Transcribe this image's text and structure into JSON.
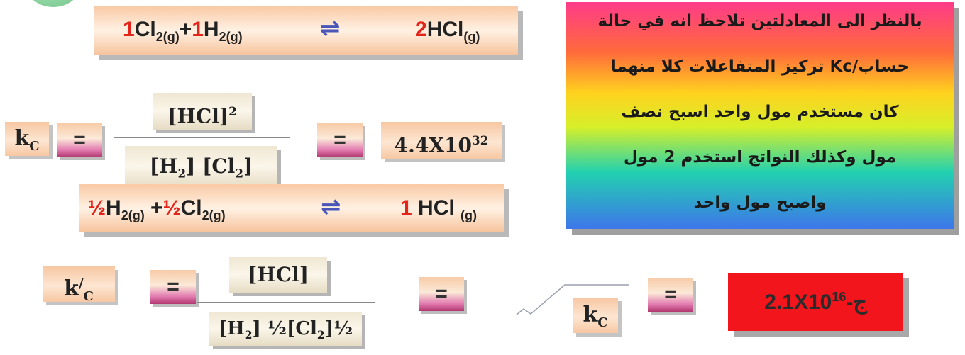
{
  "eq1": {
    "coef_cl": "1",
    "cl": "Cl",
    "cl_sub": "2(g)",
    "plus": "+",
    "coef_h": "1",
    "h": "H",
    "h_sub": "2(g)",
    "arrow": "⇌",
    "prod_coef": "2",
    "prod": "HCl",
    "prod_sub": "(g)"
  },
  "kc_row": {
    "kc_label": "k",
    "kc_sub": "C",
    "equals": "=",
    "numerator": "[HCl]",
    "numerator_sup": "2",
    "den_h": "[H",
    "den_h_sub": "2",
    "den_mid": "] [Cl",
    "den_cl_sub": "2",
    "den_end": "]",
    "value_base": "4.4X10",
    "value_exp": "32"
  },
  "eq2": {
    "half1": "½",
    "h": "H",
    "h_sub": "2(g)",
    "plus": " +",
    "half2": "½",
    "cl": "Cl",
    "cl_sub": "2(g)",
    "arrow": "⇌",
    "prod_coef": "1",
    "prod": " HCl ",
    "prod_sub": "(g)"
  },
  "kcprime_row": {
    "label": "k",
    "label_sup": "/",
    "label_sub": "C",
    "equals": "=",
    "numerator": "[HCl]",
    "den_h": "[H",
    "den_h_sub": "2",
    "den_h_exp": "] ½",
    "den_cl": "[Cl",
    "den_cl_sub": "2",
    "den_cl_exp": "]½",
    "kc_label": "k",
    "kc_sub": "C",
    "answer_base": "2.1X10",
    "answer_exp": "16",
    "answer_suffix": "-ج"
  },
  "note": {
    "lines": [
      "بالنظر الى المعادلتين تلاحظ  انه في حالة",
      "حساب/Kc تركيز المتفاعلات  كلا منهما",
      "كان مستخدم  مول واحد اسبح نصف",
      "مول وكذلك النواتج  استخدم 2 مول",
      "واصبح مول واحد"
    ]
  },
  "colors": {
    "accent_red": "#e3241b",
    "answer_box": "#f2151c"
  }
}
